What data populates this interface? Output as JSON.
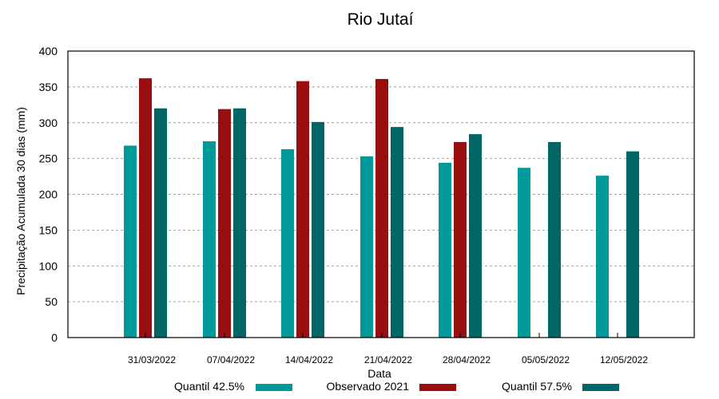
{
  "chart_data": {
    "type": "bar",
    "title": "Rio Jutaí",
    "xlabel": "Data",
    "ylabel": "Precipitação Acumulada 30 dias (mm)",
    "ylim": [
      0,
      400
    ],
    "yticks": [
      0,
      50,
      100,
      150,
      200,
      250,
      300,
      350,
      400
    ],
    "grid": true,
    "legend_position": "bottom",
    "categories": [
      "31/03/2022",
      "07/04/2022",
      "14/04/2022",
      "21/04/2022",
      "28/04/2022",
      "05/05/2022",
      "12/05/2022"
    ],
    "series": [
      {
        "name": "Quantil 42.5%",
        "color": "#009999",
        "values": [
          268,
          274,
          263,
          253,
          244,
          237,
          226
        ]
      },
      {
        "name": "Observado 2021",
        "color": "#990f0f",
        "values": [
          362,
          319,
          358,
          361,
          273,
          null,
          null
        ]
      },
      {
        "name": "Quantil 57.5%",
        "color": "#006666",
        "values": [
          320,
          320,
          301,
          294,
          284,
          273,
          260
        ]
      }
    ]
  }
}
